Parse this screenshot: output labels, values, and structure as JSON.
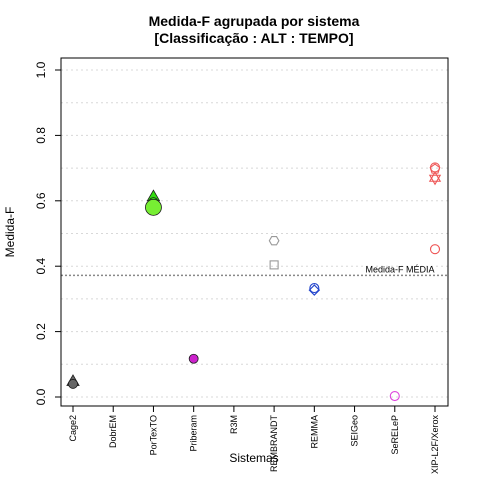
{
  "chart_data": {
    "type": "scatter",
    "title": "Medida-F agrupada por sistema",
    "subtitle": "[Classificação : ALT : TEMPO]",
    "xlabel": "Sistemas",
    "ylabel": "Medida-F",
    "ylim": [
      0,
      1
    ],
    "yticks": [
      "0.0",
      "0.2",
      "0.4",
      "0.6",
      "0.8",
      "1.0"
    ],
    "grid": true,
    "categories": [
      "Cage2",
      "DobrEM",
      "PorTexTO",
      "Priberam",
      "R3M",
      "REMBRANDT",
      "REMMA",
      "SEIGeo",
      "SeRELeP",
      "XIP-L2F/Xerox"
    ],
    "reference_line": {
      "value": 0.372,
      "label": "Medida-F MÉDIA",
      "color": "#888888"
    },
    "points": [
      {
        "category": "Cage2",
        "y": 0.046,
        "shape": "triangle",
        "color": "#666666",
        "filled": true
      },
      {
        "category": "Cage2",
        "y": 0.04,
        "shape": "circle",
        "color": "#666666",
        "filled": true
      },
      {
        "category": "PorTexTO",
        "y": 0.611,
        "shape": "triangle",
        "color": "#33dd11",
        "filled": true
      },
      {
        "category": "PorTexTO",
        "y": 0.596,
        "shape": "circle",
        "color": "#33dd11",
        "filled": true
      },
      {
        "category": "PorTexTO",
        "y": 0.58,
        "shape": "circle",
        "color": "#77ee33",
        "filled": true,
        "large": true
      },
      {
        "category": "Priberam",
        "y": 0.117,
        "shape": "circle",
        "color": "#cc22cc",
        "filled": true
      },
      {
        "category": "REMBRANDT",
        "y": 0.478,
        "shape": "hexagon",
        "color": "#999999",
        "filled": false
      },
      {
        "category": "REMBRANDT",
        "y": 0.404,
        "shape": "square",
        "color": "#999999",
        "filled": false
      },
      {
        "category": "REMMA",
        "y": 0.333,
        "shape": "circle",
        "color": "#2244cc",
        "filled": false
      },
      {
        "category": "REMMA",
        "y": 0.327,
        "shape": "diamond",
        "color": "#2244cc",
        "filled": false
      },
      {
        "category": "SeRELeP",
        "y": 0.003,
        "shape": "circle",
        "color": "#dd44dd",
        "filled": false
      },
      {
        "category": "XIP-L2F/Xerox",
        "y": 0.702,
        "shape": "circle",
        "color": "#ee5555",
        "filled": false
      },
      {
        "category": "XIP-L2F/Xerox",
        "y": 0.697,
        "shape": "pentagon",
        "color": "#ee5555",
        "filled": false
      },
      {
        "category": "XIP-L2F/Xerox",
        "y": 0.669,
        "shape": "star",
        "color": "#ee5555",
        "filled": false
      },
      {
        "category": "XIP-L2F/Xerox",
        "y": 0.452,
        "shape": "circle",
        "color": "#ee5555",
        "filled": false
      }
    ]
  }
}
